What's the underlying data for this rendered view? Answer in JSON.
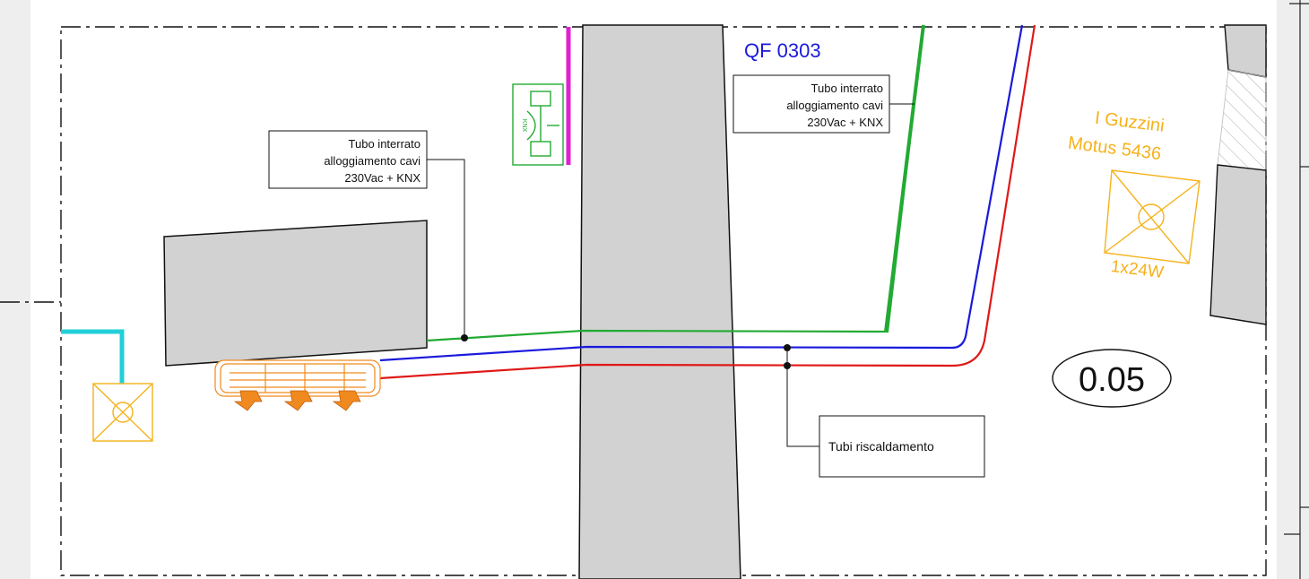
{
  "callouts": {
    "cable_left": {
      "lines": [
        "Tubo interrato",
        "alloggiamento cavi",
        "230Vac + KNX"
      ]
    },
    "cable_right": {
      "lines": [
        "Tubo interrato",
        "alloggiamento cavi",
        "230Vac + KNX"
      ]
    },
    "heating": {
      "text": "Tubi riscaldamento"
    }
  },
  "fixture": {
    "brand": "I Guzzini",
    "model": "Motus 5436",
    "power": "1x24W",
    "color": "#f5b21b"
  },
  "room": {
    "number": "0.05"
  },
  "top_label": {
    "text": "QF 0303"
  },
  "colors": {
    "pipe_green": "#22aa33",
    "pipe_blue": "#1a1adc",
    "pipe_red": "#e01818",
    "magenta": "#e020d0",
    "cyan": "#22cfd8",
    "fan_coil": "#f08a1e",
    "wall_fill": "#d2d2d2"
  },
  "icons": {
    "room_light": "ceiling-light-icon",
    "panel": "knx-panel-icon",
    "heater": "fan-coil-icon"
  }
}
